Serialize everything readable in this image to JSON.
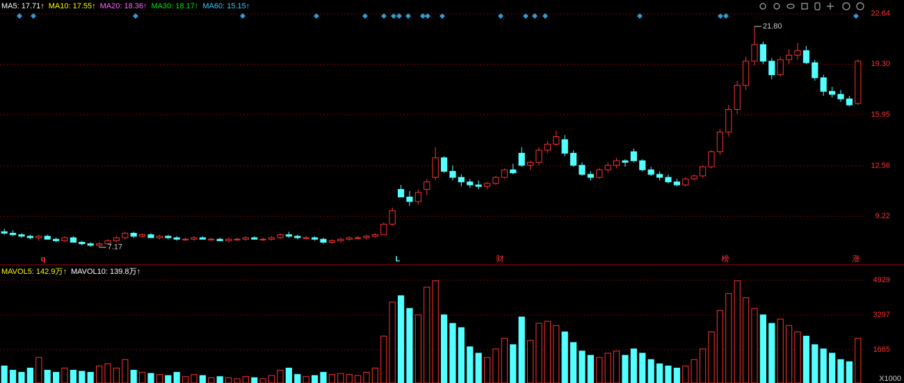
{
  "chart_data": {
    "type": "candlestick",
    "legend": [
      {
        "label": "MA5: 17.71↑",
        "color": "#ffffff"
      },
      {
        "label": "MA10: 17.55↑",
        "color": "#ffff00"
      },
      {
        "label": "MA20: 18.36↑",
        "color": "#ff66ff"
      },
      {
        "label": "MA30: 18.17↑",
        "color": "#00e600"
      },
      {
        "label": "MA60: 15.15↑",
        "color": "#33ccff"
      }
    ],
    "volume_legend": [
      {
        "label": "MAVOL5: 142.9万↑",
        "color": "#ffff00"
      },
      {
        "label": "MAVOL10: 139.8万↑",
        "color": "#ffffff"
      }
    ],
    "up_color": "#ff3232",
    "down_color": "#54ffff",
    "ylim": [
      6.05,
      23.0
    ],
    "yticks": [
      22.64,
      {
        "value": 19.3,
        "label": "19.30"
      },
      15.95,
      12.56,
      9.22
    ],
    "y2lim": [
      98,
      5420
    ],
    "y2ticks": [
      4929,
      3297,
      1665
    ],
    "y2_unit": "X1000",
    "annotations": [
      "21.80",
      "7.17"
    ],
    "event_labels": [
      "q",
      "L",
      "财",
      "榜",
      "涨"
    ],
    "grid": true,
    "ohlcv": [
      [
        8.2,
        8.4,
        8.0,
        8.1,
        900
      ],
      [
        8.1,
        8.3,
        7.9,
        8.0,
        700
      ],
      [
        8.0,
        8.1,
        7.8,
        7.9,
        600
      ],
      [
        7.9,
        8.0,
        7.7,
        7.8,
        800
      ],
      [
        7.8,
        8.0,
        7.6,
        7.9,
        1300
      ],
      [
        7.9,
        8.0,
        7.7,
        7.7,
        700
      ],
      [
        7.7,
        7.8,
        7.5,
        7.6,
        600
      ],
      [
        7.6,
        7.9,
        7.5,
        7.8,
        800
      ],
      [
        7.8,
        7.9,
        7.5,
        7.5,
        700
      ],
      [
        7.5,
        7.6,
        7.3,
        7.4,
        650
      ],
      [
        7.4,
        7.5,
        7.2,
        7.3,
        600
      ],
      [
        7.3,
        7.5,
        7.17,
        7.4,
        900
      ],
      [
        7.4,
        7.7,
        7.35,
        7.6,
        1000
      ],
      [
        7.6,
        7.9,
        7.5,
        7.8,
        800
      ],
      [
        7.8,
        8.2,
        7.7,
        8.1,
        1200
      ],
      [
        8.1,
        8.2,
        7.8,
        7.9,
        700
      ],
      [
        7.9,
        8.1,
        7.8,
        8.0,
        600
      ],
      [
        8.0,
        8.1,
        7.8,
        7.8,
        550
      ],
      [
        7.8,
        8.0,
        7.7,
        7.9,
        500
      ],
      [
        7.9,
        8.0,
        7.7,
        7.8,
        450
      ],
      [
        7.8,
        7.9,
        7.6,
        7.7,
        600
      ],
      [
        7.7,
        7.8,
        7.6,
        7.7,
        400
      ],
      [
        7.7,
        7.9,
        7.6,
        7.8,
        500
      ],
      [
        7.8,
        7.9,
        7.7,
        7.7,
        450
      ],
      [
        7.7,
        7.8,
        7.6,
        7.7,
        350
      ],
      [
        7.7,
        7.8,
        7.6,
        7.6,
        400
      ],
      [
        7.6,
        7.8,
        7.5,
        7.7,
        350
      ],
      [
        7.7,
        7.8,
        7.6,
        7.7,
        300
      ],
      [
        7.7,
        7.9,
        7.6,
        7.8,
        400
      ],
      [
        7.8,
        7.9,
        7.7,
        7.7,
        350
      ],
      [
        7.7,
        7.8,
        7.6,
        7.7,
        300
      ],
      [
        7.7,
        7.9,
        7.6,
        7.8,
        450
      ],
      [
        7.8,
        8.1,
        7.7,
        8.0,
        700
      ],
      [
        8.0,
        8.2,
        7.8,
        7.9,
        800
      ],
      [
        7.9,
        8.0,
        7.7,
        7.8,
        500
      ],
      [
        7.8,
        7.9,
        7.7,
        7.8,
        400
      ],
      [
        7.8,
        7.9,
        7.6,
        7.7,
        450
      ],
      [
        7.7,
        7.8,
        7.4,
        7.5,
        600
      ],
      [
        7.5,
        7.7,
        7.4,
        7.6,
        500
      ],
      [
        7.6,
        7.8,
        7.5,
        7.7,
        550
      ],
      [
        7.7,
        7.9,
        7.6,
        7.8,
        500
      ],
      [
        7.8,
        7.9,
        7.7,
        7.8,
        450
      ],
      [
        7.8,
        8.0,
        7.7,
        7.9,
        600
      ],
      [
        7.9,
        8.1,
        7.8,
        8.0,
        800
      ],
      [
        8.0,
        8.8,
        8.0,
        8.7,
        2300
      ],
      [
        8.7,
        9.8,
        8.6,
        9.6,
        3900
      ],
      [
        11.0,
        11.3,
        10.5,
        10.5,
        4200
      ],
      [
        10.5,
        10.9,
        9.9,
        10.2,
        3600
      ],
      [
        10.2,
        11.0,
        10.0,
        10.8,
        3300
      ],
      [
        11.0,
        11.7,
        10.6,
        11.5,
        4600
      ],
      [
        11.8,
        13.8,
        11.6,
        13.1,
        4900
      ],
      [
        13.1,
        13.2,
        12.1,
        12.2,
        3300
      ],
      [
        12.2,
        12.6,
        11.6,
        11.8,
        2900
      ],
      [
        11.8,
        12.0,
        11.2,
        11.5,
        2700
      ],
      [
        11.5,
        11.7,
        11.1,
        11.3,
        1800
      ],
      [
        11.3,
        11.6,
        11.0,
        11.2,
        1500
      ],
      [
        11.2,
        11.5,
        11.0,
        11.4,
        1300
      ],
      [
        11.4,
        11.9,
        11.3,
        11.8,
        1700
      ],
      [
        11.8,
        12.4,
        11.7,
        12.3,
        2200
      ],
      [
        12.3,
        12.7,
        12.0,
        12.1,
        1900
      ],
      [
        13.4,
        13.8,
        12.5,
        12.6,
        3200
      ],
      [
        12.6,
        12.9,
        12.3,
        12.8,
        2100
      ],
      [
        12.8,
        13.8,
        12.6,
        13.6,
        2900
      ],
      [
        13.6,
        14.2,
        13.4,
        14.0,
        3000
      ],
      [
        14.0,
        14.9,
        13.9,
        14.5,
        2800
      ],
      [
        14.3,
        14.6,
        13.2,
        13.4,
        2500
      ],
      [
        13.4,
        13.6,
        12.5,
        12.6,
        2000
      ],
      [
        12.6,
        12.8,
        11.9,
        12.0,
        1600
      ],
      [
        12.0,
        12.2,
        11.6,
        11.8,
        1400
      ],
      [
        11.8,
        12.4,
        11.7,
        12.3,
        1300
      ],
      [
        12.3,
        12.8,
        12.1,
        12.6,
        1500
      ],
      [
        12.6,
        13.1,
        12.4,
        12.9,
        1600
      ],
      [
        12.9,
        13.0,
        12.5,
        12.8,
        1400
      ],
      [
        13.5,
        13.7,
        12.8,
        12.9,
        1700
      ],
      [
        12.9,
        13.0,
        12.2,
        12.3,
        1500
      ],
      [
        12.3,
        12.5,
        11.9,
        12.0,
        1200
      ],
      [
        12.0,
        12.2,
        11.6,
        11.8,
        1000
      ],
      [
        11.8,
        12.0,
        11.4,
        11.5,
        900
      ],
      [
        11.5,
        11.7,
        11.2,
        11.3,
        800
      ],
      [
        11.3,
        11.8,
        11.2,
        11.7,
        900
      ],
      [
        11.7,
        12.0,
        11.6,
        11.9,
        1200
      ],
      [
        11.9,
        12.6,
        11.8,
        12.5,
        1700
      ],
      [
        12.5,
        13.6,
        12.4,
        13.5,
        2500
      ],
      [
        13.5,
        15.0,
        13.3,
        14.8,
        3500
      ],
      [
        14.8,
        16.6,
        14.5,
        16.3,
        4300
      ],
      [
        16.3,
        18.2,
        16.0,
        17.9,
        4900
      ],
      [
        17.9,
        19.8,
        17.6,
        19.5,
        4100
      ],
      [
        19.5,
        21.8,
        19.2,
        20.6,
        3600
      ],
      [
        20.6,
        20.8,
        19.3,
        19.5,
        3300
      ],
      [
        19.5,
        19.7,
        18.3,
        18.6,
        2900
      ],
      [
        18.6,
        19.8,
        18.5,
        19.6,
        3100
      ],
      [
        19.6,
        20.3,
        19.3,
        19.9,
        2800
      ],
      [
        19.9,
        20.7,
        19.6,
        20.2,
        2500
      ],
      [
        20.2,
        20.5,
        19.3,
        19.4,
        2300
      ],
      [
        19.4,
        19.6,
        18.2,
        18.4,
        1900
      ],
      [
        18.4,
        18.6,
        17.2,
        17.5,
        1700
      ],
      [
        17.5,
        17.8,
        17.1,
        17.3,
        1500
      ],
      [
        17.3,
        17.6,
        16.8,
        17.0,
        1200
      ],
      [
        17.0,
        17.2,
        16.5,
        16.6,
        1100
      ],
      [
        16.7,
        19.6,
        16.6,
        19.5,
        2200
      ]
    ]
  }
}
